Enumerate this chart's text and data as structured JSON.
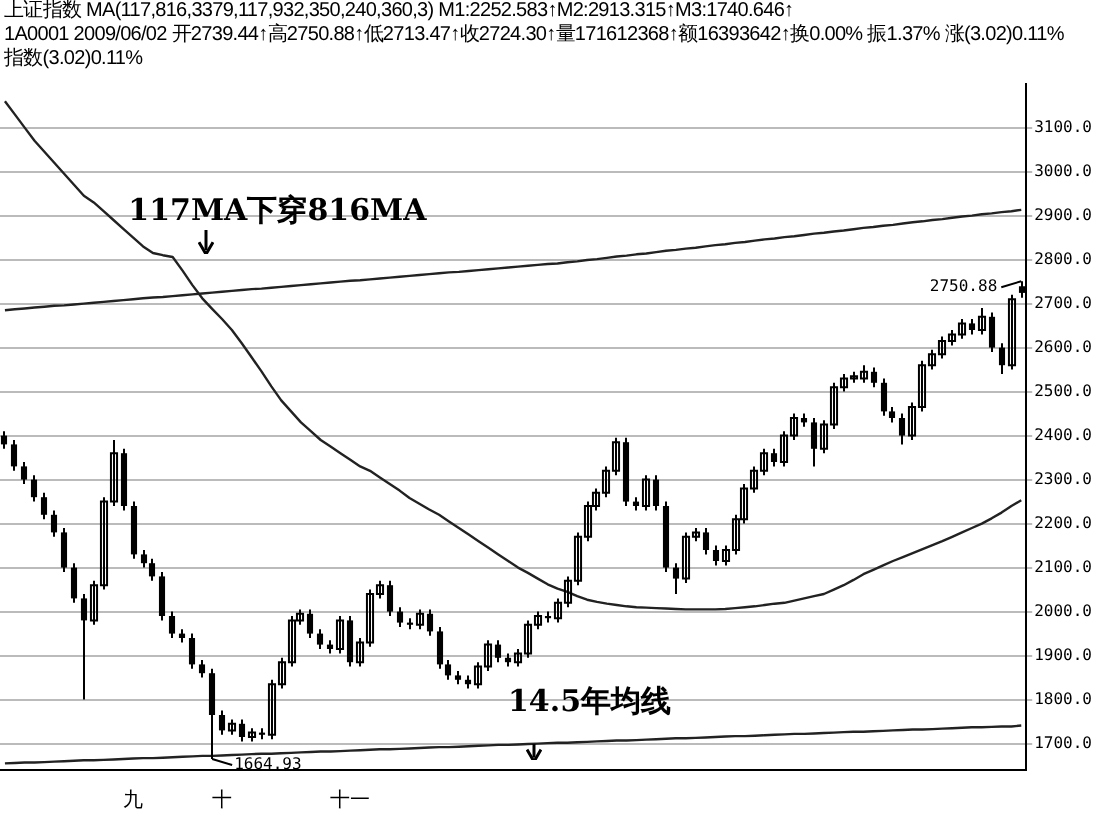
{
  "chart_data": {
    "type": "candlestick",
    "title": "上证指数 MA(117,816,3379,117,932,350,240,360,3) M1:2252.583↑M2:2913.315↑M3:1740.646↑",
    "subtitle": "1A0001 2009/06/02 开2739.44↑高2750.88↑低2713.47↑收2724.30↑量171612368↑额16393642↑换0.00% 振1.37% 涨(3.02)0.11% 指数(3.02)0.11%",
    "categories": [
      null,
      null,
      null,
      null,
      null,
      null,
      null,
      null,
      null,
      null,
      null,
      null,
      null,
      "九",
      null,
      null,
      null,
      null,
      null,
      null,
      null,
      null,
      "十",
      null,
      null,
      null,
      null,
      null,
      null,
      null,
      null,
      null,
      null,
      null,
      null,
      "十一",
      null,
      null,
      null,
      null,
      null,
      null,
      null,
      null,
      null,
      null,
      null,
      null,
      null,
      null,
      null,
      null,
      null,
      null,
      null,
      null,
      null,
      null,
      null,
      null,
      null,
      null,
      null,
      null,
      null,
      null,
      null,
      null,
      null,
      null,
      null,
      null,
      null,
      null,
      null,
      null,
      null,
      null,
      null,
      null,
      null,
      null,
      null,
      null,
      null,
      null,
      null,
      null,
      null,
      null,
      null,
      null,
      null,
      null,
      null,
      null,
      null,
      null,
      null,
      null,
      null,
      null,
      null,
      null
    ],
    "color": "#000000",
    "ohlc": [
      [
        2400,
        2410,
        2370,
        2380
      ],
      [
        2380,
        2390,
        2320,
        2330
      ],
      [
        2330,
        2340,
        2290,
        2300
      ],
      [
        2300,
        2310,
        2250,
        2260
      ],
      [
        2260,
        2270,
        2210,
        2220
      ],
      [
        2220,
        2230,
        2170,
        2180
      ],
      [
        2180,
        2190,
        2090,
        2100
      ],
      [
        2100,
        2110,
        2020,
        2030
      ],
      [
        2030,
        2040,
        1800,
        1980
      ],
      [
        1980,
        2070,
        1970,
        2060
      ],
      [
        2060,
        2260,
        2050,
        2250
      ],
      [
        2250,
        2390,
        2240,
        2360
      ],
      [
        2360,
        2370,
        2230,
        2240
      ],
      [
        2240,
        2250,
        2120,
        2130
      ],
      [
        2130,
        2140,
        2100,
        2110
      ],
      [
        2110,
        2120,
        2070,
        2080
      ],
      [
        2080,
        2090,
        1980,
        1990
      ],
      [
        1990,
        2000,
        1940,
        1950
      ],
      [
        1950,
        1960,
        1930,
        1940
      ],
      [
        1940,
        1950,
        1870,
        1880
      ],
      [
        1880,
        1890,
        1850,
        1860
      ],
      [
        1860,
        1870,
        1664.93,
        1765
      ],
      [
        1765,
        1775,
        1720,
        1730
      ],
      [
        1730,
        1755,
        1720,
        1745
      ],
      [
        1745,
        1755,
        1705,
        1715
      ],
      [
        1715,
        1735,
        1705,
        1725
      ],
      [
        1725,
        1735,
        1710,
        1720
      ],
      [
        1720,
        1845,
        1710,
        1835
      ],
      [
        1835,
        1895,
        1825,
        1885
      ],
      [
        1885,
        1990,
        1875,
        1980
      ],
      [
        1980,
        2005,
        1970,
        1995
      ],
      [
        1995,
        2005,
        1940,
        1950
      ],
      [
        1950,
        1960,
        1915,
        1925
      ],
      [
        1925,
        1935,
        1905,
        1915
      ],
      [
        1915,
        1990,
        1905,
        1980
      ],
      [
        1980,
        1990,
        1875,
        1885
      ],
      [
        1885,
        1940,
        1875,
        1930
      ],
      [
        1930,
        2050,
        1920,
        2040
      ],
      [
        2040,
        2070,
        2030,
        2060
      ],
      [
        2060,
        2070,
        1990,
        2000
      ],
      [
        2000,
        2010,
        1965,
        1975
      ],
      [
        1975,
        1985,
        1960,
        1970
      ],
      [
        1970,
        2005,
        1960,
        1995
      ],
      [
        1995,
        2005,
        1945,
        1955
      ],
      [
        1955,
        1965,
        1870,
        1880
      ],
      [
        1880,
        1890,
        1845,
        1855
      ],
      [
        1855,
        1865,
        1835,
        1845
      ],
      [
        1845,
        1855,
        1825,
        1835
      ],
      [
        1835,
        1885,
        1825,
        1875
      ],
      [
        1875,
        1935,
        1865,
        1925
      ],
      [
        1925,
        1935,
        1885,
        1895
      ],
      [
        1895,
        1905,
        1875,
        1885
      ],
      [
        1885,
        1915,
        1875,
        1905
      ],
      [
        1905,
        1980,
        1895,
        1970
      ],
      [
        1970,
        2000,
        1960,
        1990
      ],
      [
        1990,
        2000,
        1975,
        1985
      ],
      [
        1985,
        2030,
        1975,
        2020
      ],
      [
        2020,
        2080,
        2010,
        2070
      ],
      [
        2070,
        2180,
        2060,
        2170
      ],
      [
        2170,
        2250,
        2160,
        2240
      ],
      [
        2240,
        2280,
        2230,
        2270
      ],
      [
        2270,
        2330,
        2260,
        2320
      ],
      [
        2320,
        2395,
        2310,
        2385
      ],
      [
        2385,
        2395,
        2240,
        2250
      ],
      [
        2250,
        2260,
        2230,
        2240
      ],
      [
        2240,
        2310,
        2230,
        2300
      ],
      [
        2300,
        2310,
        2230,
        2240
      ],
      [
        2240,
        2250,
        2090,
        2100
      ],
      [
        2100,
        2110,
        2040,
        2075
      ],
      [
        2075,
        2180,
        2065,
        2170
      ],
      [
        2170,
        2190,
        2160,
        2180
      ],
      [
        2180,
        2190,
        2130,
        2140
      ],
      [
        2140,
        2150,
        2105,
        2115
      ],
      [
        2115,
        2150,
        2105,
        2140
      ],
      [
        2140,
        2220,
        2130,
        2210
      ],
      [
        2210,
        2290,
        2200,
        2280
      ],
      [
        2280,
        2330,
        2270,
        2320
      ],
      [
        2320,
        2370,
        2310,
        2360
      ],
      [
        2360,
        2370,
        2330,
        2340
      ],
      [
        2340,
        2410,
        2330,
        2400
      ],
      [
        2400,
        2450,
        2390,
        2440
      ],
      [
        2440,
        2450,
        2420,
        2430
      ],
      [
        2430,
        2440,
        2330,
        2370
      ],
      [
        2370,
        2435,
        2360,
        2425
      ],
      [
        2425,
        2520,
        2415,
        2510
      ],
      [
        2510,
        2540,
        2500,
        2530
      ],
      [
        2530,
        2545,
        2520,
        2535
      ],
      [
        2530,
        2560,
        2520,
        2545
      ],
      [
        2545,
        2555,
        2510,
        2520
      ],
      [
        2520,
        2530,
        2445,
        2455
      ],
      [
        2455,
        2465,
        2430,
        2440
      ],
      [
        2440,
        2450,
        2380,
        2400
      ],
      [
        2400,
        2475,
        2390,
        2465
      ],
      [
        2465,
        2570,
        2455,
        2560
      ],
      [
        2560,
        2595,
        2550,
        2585
      ],
      [
        2585,
        2625,
        2575,
        2615
      ],
      [
        2615,
        2640,
        2605,
        2630
      ],
      [
        2630,
        2665,
        2620,
        2655
      ],
      [
        2655,
        2665,
        2630,
        2640
      ],
      [
        2640,
        2690,
        2630,
        2670
      ],
      [
        2670,
        2680,
        2590,
        2600
      ],
      [
        2600,
        2610,
        2540,
        2560
      ],
      [
        2560,
        2720,
        2550,
        2710
      ],
      [
        2739.44,
        2750.88,
        2713.47,
        2724.3
      ]
    ],
    "series": [
      {
        "type": "line",
        "color": "#222222",
        "values": [
          3160,
          3130,
          3100,
          3070,
          3045,
          3020,
          2995,
          2970,
          2945,
          2930,
          2910,
          2890,
          2870,
          2850,
          2830,
          2815,
          2810,
          2806,
          2775,
          2742,
          2712,
          2688,
          2665,
          2640,
          2610,
          2578,
          2546,
          2512,
          2480,
          2455,
          2430,
          2410,
          2390,
          2375,
          2360,
          2345,
          2330,
          2320,
          2305,
          2290,
          2275,
          2258,
          2245,
          2232,
          2220,
          2205,
          2190,
          2175,
          2160,
          2145,
          2130,
          2115,
          2100,
          2088,
          2075,
          2062,
          2052,
          2045,
          2035,
          2027,
          2022,
          2018,
          2015,
          2012,
          2010,
          2009,
          2008,
          2007,
          2006,
          2005,
          2005,
          2005,
          2005,
          2006,
          2008,
          2010,
          2012,
          2015,
          2018,
          2020,
          2025,
          2030,
          2035,
          2040,
          2050,
          2060,
          2072,
          2085,
          2095,
          2105,
          2115,
          2124,
          2133,
          2142,
          2151,
          2160,
          2170,
          2180,
          2190,
          2200,
          2212,
          2225,
          2240,
          2253
        ]
      },
      {
        "type": "line",
        "color": "#222222",
        "values": [
          2685,
          2687,
          2689,
          2691,
          2693,
          2695,
          2696,
          2698,
          2700,
          2702,
          2704,
          2706,
          2708,
          2710,
          2712,
          2714,
          2715,
          2717,
          2719,
          2721,
          2723,
          2725,
          2727,
          2729,
          2731,
          2733,
          2734,
          2736,
          2738,
          2740,
          2742,
          2744,
          2746,
          2748,
          2750,
          2752,
          2753,
          2755,
          2757,
          2759,
          2761,
          2763,
          2765,
          2767,
          2769,
          2771,
          2772,
          2774,
          2776,
          2778,
          2780,
          2782,
          2784,
          2786,
          2788,
          2790,
          2791,
          2794,
          2796,
          2799,
          2801,
          2804,
          2807,
          2809,
          2812,
          2814,
          2817,
          2820,
          2822,
          2825,
          2827,
          2830,
          2833,
          2835,
          2838,
          2840,
          2843,
          2846,
          2848,
          2851,
          2853,
          2856,
          2859,
          2861,
          2864,
          2866,
          2869,
          2872,
          2874,
          2877,
          2879,
          2882,
          2885,
          2887,
          2890,
          2892,
          2895,
          2898,
          2900,
          2903,
          2905,
          2908,
          2910,
          2913
        ]
      },
      {
        "type": "line",
        "color": "#222222",
        "values": [
          1655,
          1656,
          1657,
          1657,
          1658,
          1659,
          1660,
          1661,
          1662,
          1662,
          1663,
          1664,
          1665,
          1666,
          1667,
          1667,
          1668,
          1669,
          1670,
          1671,
          1672,
          1672,
          1673,
          1674,
          1675,
          1676,
          1677,
          1677,
          1678,
          1679,
          1680,
          1681,
          1682,
          1682,
          1683,
          1684,
          1685,
          1686,
          1687,
          1687,
          1688,
          1689,
          1690,
          1691,
          1692,
          1692,
          1693,
          1694,
          1695,
          1696,
          1697,
          1697,
          1698,
          1699,
          1700,
          1701,
          1702,
          1702,
          1703,
          1704,
          1705,
          1706,
          1707,
          1707,
          1708,
          1709,
          1710,
          1711,
          1712,
          1712,
          1713,
          1714,
          1715,
          1716,
          1717,
          1717,
          1718,
          1719,
          1720,
          1721,
          1722,
          1722,
          1723,
          1724,
          1725,
          1726,
          1727,
          1727,
          1728,
          1729,
          1730,
          1731,
          1732,
          1732,
          1733,
          1734,
          1735,
          1736,
          1737,
          1737,
          1738,
          1739,
          1739,
          1741
        ]
      }
    ],
    "ylim": [
      1640,
      3200
    ],
    "yticks": [
      {
        "value": 1700,
        "label": "1700.0"
      },
      {
        "value": 1800,
        "label": "1800.0"
      },
      {
        "value": 1900,
        "label": "1900.0"
      },
      {
        "value": 2000,
        "label": "2000.0"
      },
      {
        "value": 2100,
        "label": "2100.0"
      },
      {
        "value": 2200,
        "label": "2200.0"
      },
      {
        "value": 2300,
        "label": "2300.0"
      },
      {
        "value": 2400,
        "label": "2400.0"
      },
      {
        "value": 2500,
        "label": "2500.0"
      },
      {
        "value": 2600,
        "label": "2600.0"
      },
      {
        "value": 2700,
        "label": "2700.0"
      },
      {
        "value": 2800,
        "label": "2800.0"
      },
      {
        "value": 2900,
        "label": "2900.0"
      },
      {
        "value": 3000,
        "label": "3000.0"
      },
      {
        "value": 3100,
        "label": "3100.0"
      }
    ],
    "grid": "y",
    "legend": false,
    "annotations": [
      "117MA下穿816MA",
      "14.5年均线",
      "2750.88",
      "1664.93"
    ]
  }
}
